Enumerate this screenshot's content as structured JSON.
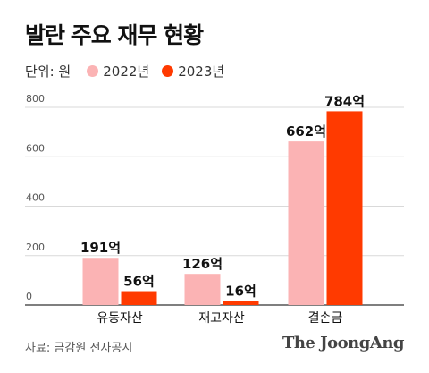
{
  "title": "발란 주요 재무 현황",
  "legend": {
    "unit": "단위: 원",
    "items": [
      {
        "label": "2022년",
        "color": "#fbb3b4"
      },
      {
        "label": "2023년",
        "color": "#ff3a00"
      }
    ]
  },
  "chart_data": {
    "type": "bar",
    "categories": [
      "유동자산",
      "재고자산",
      "결손금"
    ],
    "series": [
      {
        "name": "2022년",
        "values": [
          191,
          126,
          662
        ],
        "labels": [
          "191억",
          "126억",
          "662억"
        ],
        "color": "#fbb3b4"
      },
      {
        "name": "2023년",
        "values": [
          56,
          16,
          784
        ],
        "labels": [
          "56억",
          "16억",
          "784억"
        ],
        "color": "#ff3a00"
      }
    ],
    "yticks": [
      0,
      200,
      400,
      600,
      800
    ],
    "ylim": [
      0,
      800
    ],
    "grid": true,
    "legend_position": "top-left"
  },
  "footer": {
    "source": "자료: 금감원 전자공시",
    "brand": "The JoongAng"
  }
}
